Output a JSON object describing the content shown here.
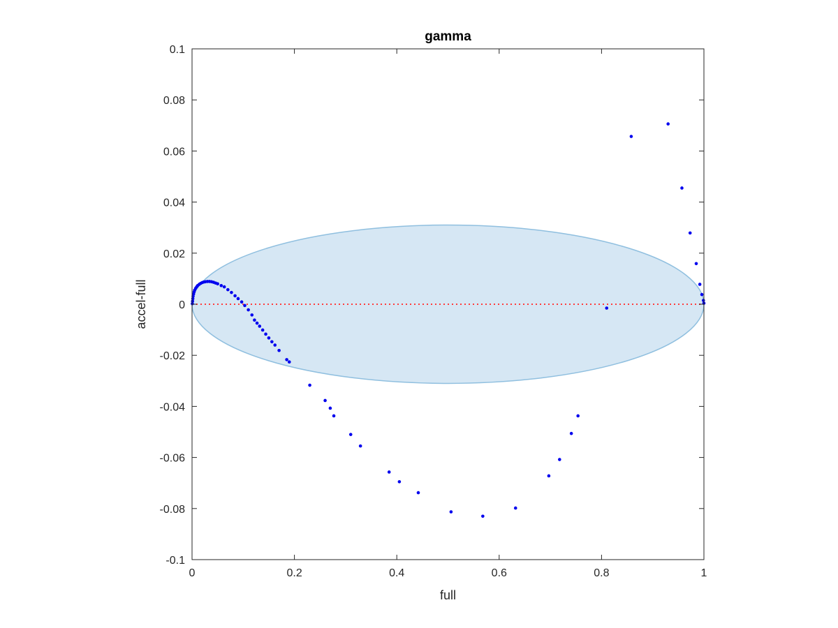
{
  "chart_data": {
    "type": "scatter",
    "title": "gamma",
    "xlabel": "full",
    "ylabel": "accel-full",
    "xlim": [
      0,
      1
    ],
    "ylim": [
      -0.1,
      0.1
    ],
    "xticks": [
      0,
      0.2,
      0.4,
      0.6,
      0.8,
      1
    ],
    "xtick_labels": [
      "0",
      "0.2",
      "0.4",
      "0.6",
      "0.8",
      "1"
    ],
    "yticks": [
      -0.1,
      -0.08,
      -0.06,
      -0.04,
      -0.02,
      0,
      0.02,
      0.04,
      0.06,
      0.08,
      0.1
    ],
    "ytick_labels": [
      "-0.1",
      "-0.08",
      "-0.06",
      "-0.04",
      "-0.02",
      "0",
      "0.02",
      "0.04",
      "0.06",
      "0.08",
      "0.1"
    ],
    "grid": false,
    "colors": {
      "points": "#0000ee",
      "ellipse_fill": "#d6e7f4",
      "ellipse_stroke": "#8fbfdf",
      "zero_line": "#ff3b3b"
    },
    "ellipse": {
      "center": [
        0.5,
        0.0
      ],
      "radii": [
        0.5,
        0.031
      ]
    },
    "reference_line_y": 0,
    "points": [
      {
        "x": 0.0005,
        "y": 0.0002
      },
      {
        "x": 0.001,
        "y": 0.0012
      },
      {
        "x": 0.0015,
        "y": 0.0022
      },
      {
        "x": 0.002,
        "y": 0.0031
      },
      {
        "x": 0.003,
        "y": 0.004
      },
      {
        "x": 0.004,
        "y": 0.0048
      },
      {
        "x": 0.005,
        "y": 0.0055
      },
      {
        "x": 0.007,
        "y": 0.0062
      },
      {
        "x": 0.009,
        "y": 0.0068
      },
      {
        "x": 0.011,
        "y": 0.0073
      },
      {
        "x": 0.014,
        "y": 0.0078
      },
      {
        "x": 0.017,
        "y": 0.0082
      },
      {
        "x": 0.02,
        "y": 0.0085
      },
      {
        "x": 0.023,
        "y": 0.0087
      },
      {
        "x": 0.026,
        "y": 0.0088
      },
      {
        "x": 0.03,
        "y": 0.0089
      },
      {
        "x": 0.034,
        "y": 0.0089
      },
      {
        "x": 0.038,
        "y": 0.0088
      },
      {
        "x": 0.042,
        "y": 0.0086
      },
      {
        "x": 0.046,
        "y": 0.0083
      },
      {
        "x": 0.05,
        "y": 0.008
      },
      {
        "x": 0.057,
        "y": 0.0073
      },
      {
        "x": 0.063,
        "y": 0.0068
      },
      {
        "x": 0.07,
        "y": 0.0057
      },
      {
        "x": 0.077,
        "y": 0.0046
      },
      {
        "x": 0.084,
        "y": 0.0033
      },
      {
        "x": 0.09,
        "y": 0.0022
      },
      {
        "x": 0.097,
        "y": 0.0009
      },
      {
        "x": 0.103,
        "y": -0.0005
      },
      {
        "x": 0.11,
        "y": -0.0022
      },
      {
        "x": 0.117,
        "y": -0.0042
      },
      {
        "x": 0.122,
        "y": -0.0062
      },
      {
        "x": 0.127,
        "y": -0.0074
      },
      {
        "x": 0.132,
        "y": -0.0086
      },
      {
        "x": 0.138,
        "y": -0.0101
      },
      {
        "x": 0.144,
        "y": -0.0117
      },
      {
        "x": 0.15,
        "y": -0.0132
      },
      {
        "x": 0.156,
        "y": -0.0147
      },
      {
        "x": 0.162,
        "y": -0.016
      },
      {
        "x": 0.17,
        "y": -0.0181
      },
      {
        "x": 0.185,
        "y": -0.0217
      },
      {
        "x": 0.19,
        "y": -0.0226
      },
      {
        "x": 0.23,
        "y": -0.0317
      },
      {
        "x": 0.26,
        "y": -0.0377
      },
      {
        "x": 0.27,
        "y": -0.0407
      },
      {
        "x": 0.277,
        "y": -0.0437
      },
      {
        "x": 0.31,
        "y": -0.051
      },
      {
        "x": 0.329,
        "y": -0.0555
      },
      {
        "x": 0.385,
        "y": -0.0657
      },
      {
        "x": 0.405,
        "y": -0.0695
      },
      {
        "x": 0.442,
        "y": -0.0738
      },
      {
        "x": 0.506,
        "y": -0.0813
      },
      {
        "x": 0.568,
        "y": -0.083
      },
      {
        "x": 0.632,
        "y": -0.0798
      },
      {
        "x": 0.697,
        "y": -0.0672
      },
      {
        "x": 0.718,
        "y": -0.0608
      },
      {
        "x": 0.741,
        "y": -0.0506
      },
      {
        "x": 0.754,
        "y": -0.0437
      },
      {
        "x": 0.81,
        "y": -0.0015
      },
      {
        "x": 0.858,
        "y": 0.0657
      },
      {
        "x": 0.93,
        "y": 0.0706
      },
      {
        "x": 0.957,
        "y": 0.0455
      },
      {
        "x": 0.973,
        "y": 0.0279
      },
      {
        "x": 0.985,
        "y": 0.0159
      },
      {
        "x": 0.992,
        "y": 0.0078
      },
      {
        "x": 0.996,
        "y": 0.0038
      },
      {
        "x": 0.999,
        "y": 0.0015
      },
      {
        "x": 1.0,
        "y": 0.0004
      }
    ]
  }
}
